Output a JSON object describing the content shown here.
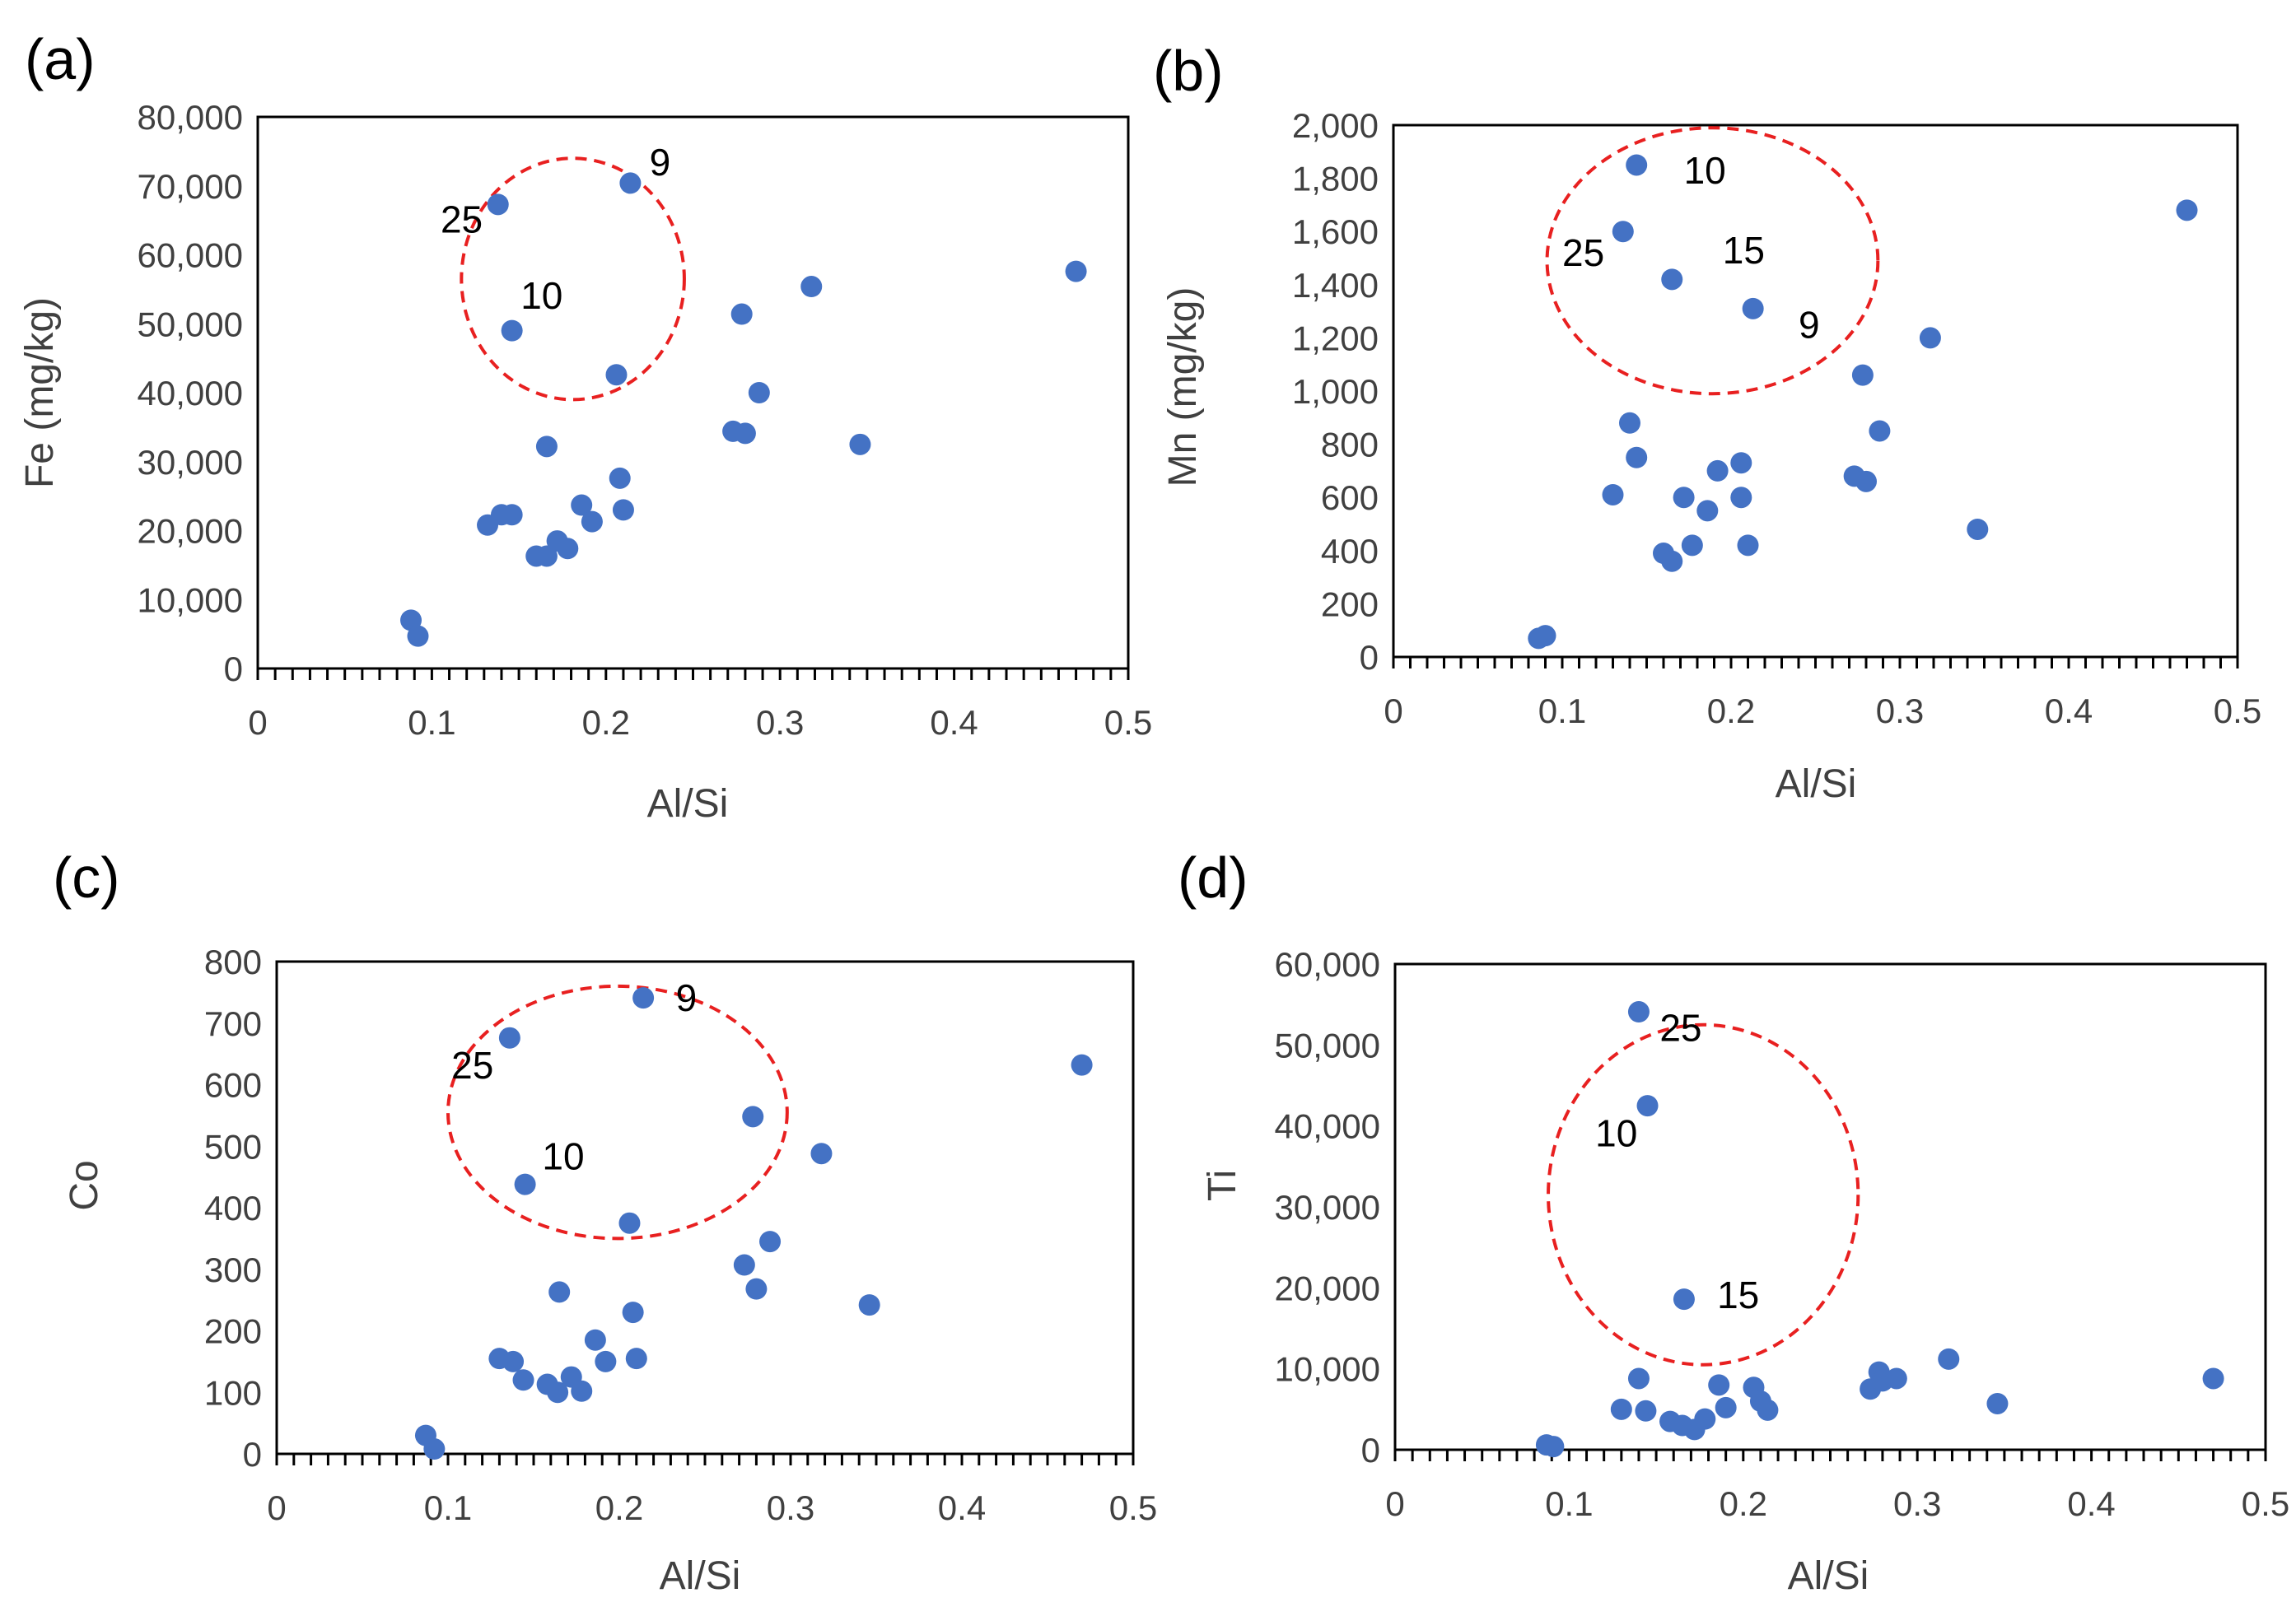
{
  "chart_data": [
    {
      "type": "scatter",
      "panel": "(a)",
      "xlabel": "Al/Si",
      "ylabel": "Fe (mg/kg)",
      "xlim": [
        0,
        0.5
      ],
      "ylim": [
        0,
        80000
      ],
      "xticks": [
        "0",
        "0.1",
        "0.2",
        "0.3",
        "0.4",
        "0.5"
      ],
      "yticks": [
        "0",
        "10,000",
        "20,000",
        "30,000",
        "40,000",
        "50,000",
        "60,000",
        "70,000",
        "80,000"
      ],
      "marker_color": "#4472C4",
      "points": [
        [
          0.088,
          7000
        ],
        [
          0.092,
          4700
        ],
        [
          0.132,
          20800
        ],
        [
          0.14,
          22300
        ],
        [
          0.146,
          22300
        ],
        [
          0.16,
          16300
        ],
        [
          0.166,
          16300
        ],
        [
          0.172,
          18500
        ],
        [
          0.178,
          17400
        ],
        [
          0.186,
          23700
        ],
        [
          0.192,
          21300
        ],
        [
          0.208,
          27600
        ],
        [
          0.21,
          23000
        ],
        [
          0.166,
          32200
        ],
        [
          0.206,
          42600
        ],
        [
          0.273,
          34400
        ],
        [
          0.28,
          34100
        ],
        [
          0.288,
          40000
        ],
        [
          0.278,
          51400
        ],
        [
          0.318,
          55400
        ],
        [
          0.346,
          32500
        ],
        [
          0.47,
          57600
        ],
        [
          0.138,
          67300
        ],
        [
          0.214,
          70400
        ],
        [
          0.146,
          49000
        ]
      ],
      "annotations": [
        {
          "text": "9",
          "x": 0.225,
          "y": 71500
        },
        {
          "text": "25",
          "x": 0.105,
          "y": 63200
        },
        {
          "text": "10",
          "x": 0.151,
          "y": 52200
        }
      ],
      "highlight_ellipse": {
        "cx": 0.181,
        "cy": 56500,
        "rx": 0.064,
        "ry": 17500
      }
    },
    {
      "type": "scatter",
      "panel": "(b)",
      "xlabel": "Al/Si",
      "ylabel": "Mn (mg/kg)",
      "xlim": [
        0,
        0.5
      ],
      "ylim": [
        0,
        2000
      ],
      "xticks": [
        "0",
        "0.1",
        "0.2",
        "0.3",
        "0.4",
        "0.5"
      ],
      "yticks": [
        "0",
        "200",
        "400",
        "600",
        "800",
        "1,000",
        "1,200",
        "1,400",
        "1,600",
        "1,800",
        "2,000"
      ],
      "marker_color": "#4472C4",
      "points": [
        [
          0.086,
          70
        ],
        [
          0.09,
          80
        ],
        [
          0.13,
          610
        ],
        [
          0.14,
          880
        ],
        [
          0.144,
          750
        ],
        [
          0.16,
          390
        ],
        [
          0.165,
          360
        ],
        [
          0.172,
          600
        ],
        [
          0.177,
          420
        ],
        [
          0.186,
          550
        ],
        [
          0.192,
          700
        ],
        [
          0.206,
          730
        ],
        [
          0.206,
          600
        ],
        [
          0.21,
          420
        ],
        [
          0.273,
          680
        ],
        [
          0.28,
          660
        ],
        [
          0.278,
          1060
        ],
        [
          0.288,
          850
        ],
        [
          0.318,
          1200
        ],
        [
          0.346,
          480
        ],
        [
          0.47,
          1680
        ],
        [
          0.144,
          1850
        ],
        [
          0.136,
          1600
        ],
        [
          0.165,
          1420
        ],
        [
          0.213,
          1310
        ]
      ],
      "annotations": [
        {
          "text": "10",
          "x": 0.172,
          "y": 1780
        },
        {
          "text": "25",
          "x": 0.1,
          "y": 1470
        },
        {
          "text": "15",
          "x": 0.195,
          "y": 1480
        },
        {
          "text": "9",
          "x": 0.24,
          "y": 1200
        }
      ],
      "highlight_ellipse": {
        "cx": 0.189,
        "cy": 1490,
        "rx": 0.098,
        "ry": 500
      }
    },
    {
      "type": "scatter",
      "panel": "(c)",
      "xlabel": "Al/Si",
      "ylabel": "Co",
      "xlim": [
        0,
        0.5
      ],
      "ylim": [
        0,
        800
      ],
      "xticks": [
        "0",
        "0.1",
        "0.2",
        "0.3",
        "0.4",
        "0.5"
      ],
      "yticks": [
        "0",
        "100",
        "200",
        "300",
        "400",
        "500",
        "600",
        "700",
        "800"
      ],
      "marker_color": "#4472C4",
      "points": [
        [
          0.087,
          30
        ],
        [
          0.092,
          8
        ],
        [
          0.13,
          155
        ],
        [
          0.138,
          150
        ],
        [
          0.144,
          120
        ],
        [
          0.158,
          113
        ],
        [
          0.164,
          100
        ],
        [
          0.172,
          125
        ],
        [
          0.178,
          102
        ],
        [
          0.186,
          185
        ],
        [
          0.192,
          150
        ],
        [
          0.208,
          230
        ],
        [
          0.21,
          155
        ],
        [
          0.165,
          263
        ],
        [
          0.206,
          375
        ],
        [
          0.273,
          307
        ],
        [
          0.28,
          268
        ],
        [
          0.288,
          345
        ],
        [
          0.278,
          548
        ],
        [
          0.318,
          488
        ],
        [
          0.346,
          242
        ],
        [
          0.47,
          632
        ],
        [
          0.136,
          676
        ],
        [
          0.214,
          741
        ],
        [
          0.145,
          438
        ]
      ],
      "annotations": [
        {
          "text": "9",
          "x": 0.233,
          "y": 720
        },
        {
          "text": "25",
          "x": 0.102,
          "y": 610
        },
        {
          "text": "10",
          "x": 0.155,
          "y": 462
        }
      ],
      "highlight_ellipse": {
        "cx": 0.199,
        "cy": 555,
        "rx": 0.099,
        "ry": 205
      }
    },
    {
      "type": "scatter",
      "panel": "(d)",
      "xlabel": "Al/Si",
      "ylabel": "Ti",
      "xlim": [
        0,
        0.5
      ],
      "ylim": [
        0,
        60000
      ],
      "xticks": [
        "0",
        "0.1",
        "0.2",
        "0.3",
        "0.4",
        "0.5"
      ],
      "yticks": [
        "0",
        "10,000",
        "20,000",
        "30,000",
        "40,000",
        "50,000",
        "60,000"
      ],
      "marker_color": "#4472C4",
      "points": [
        [
          0.087,
          600
        ],
        [
          0.091,
          400
        ],
        [
          0.13,
          5000
        ],
        [
          0.14,
          8800
        ],
        [
          0.144,
          4800
        ],
        [
          0.158,
          3500
        ],
        [
          0.165,
          3000
        ],
        [
          0.172,
          2500
        ],
        [
          0.178,
          3800
        ],
        [
          0.186,
          8000
        ],
        [
          0.19,
          5200
        ],
        [
          0.206,
          7700
        ],
        [
          0.21,
          6000
        ],
        [
          0.214,
          4900
        ],
        [
          0.273,
          7500
        ],
        [
          0.278,
          9600
        ],
        [
          0.28,
          8500
        ],
        [
          0.288,
          8800
        ],
        [
          0.318,
          11200
        ],
        [
          0.346,
          5700
        ],
        [
          0.47,
          8800
        ],
        [
          0.14,
          54100
        ],
        [
          0.145,
          42500
        ],
        [
          0.166,
          18600
        ]
      ],
      "annotations": [
        {
          "text": "25",
          "x": 0.152,
          "y": 50500
        },
        {
          "text": "10",
          "x": 0.115,
          "y": 37500
        },
        {
          "text": "15",
          "x": 0.185,
          "y": 17500
        }
      ],
      "highlight_ellipse": {
        "cx": 0.177,
        "cy": 31500,
        "rx": 0.089,
        "ry": 21000
      }
    }
  ]
}
